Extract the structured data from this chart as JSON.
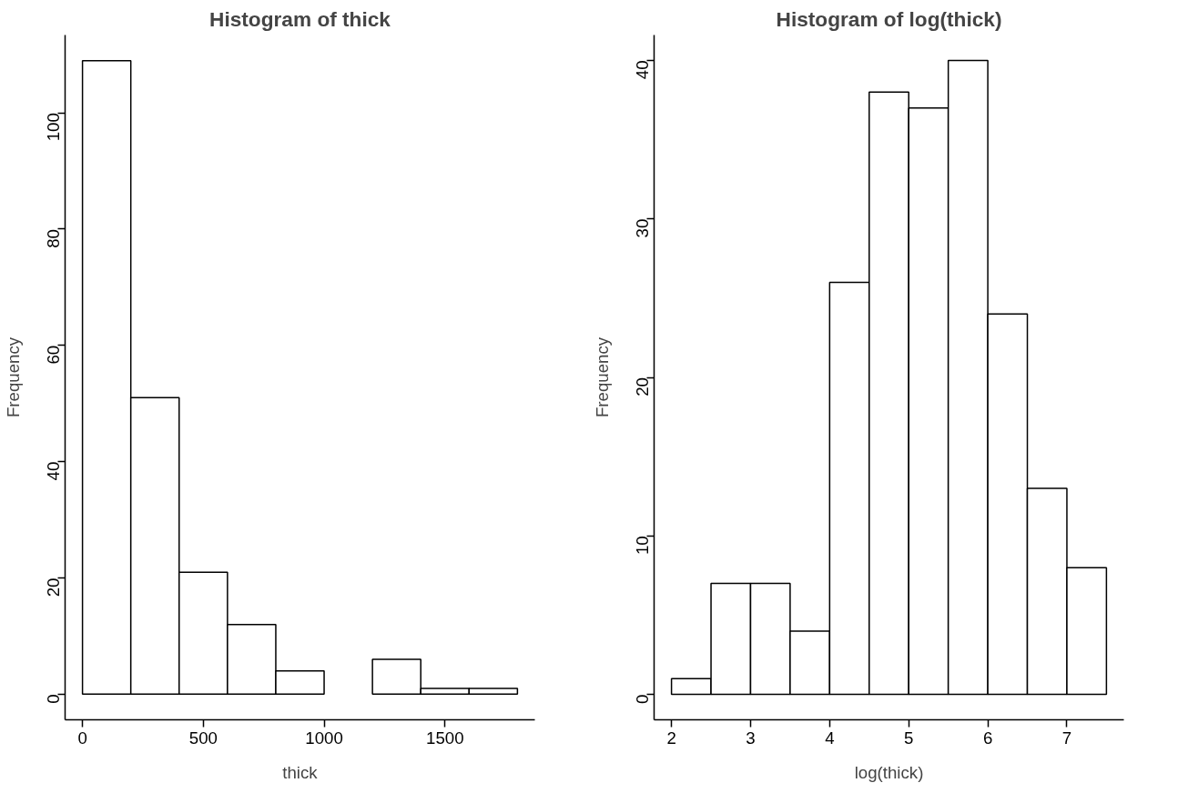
{
  "chart_data": [
    {
      "type": "histogram",
      "title": "Histogram of thick",
      "xlabel": "thick",
      "ylabel": "Frequency",
      "color": "#ffffff",
      "bins": [
        0,
        200,
        400,
        600,
        800,
        1000,
        1200,
        1400,
        1600,
        1800
      ],
      "values": [
        109,
        51,
        21,
        12,
        4,
        0,
        6,
        1,
        1
      ],
      "xlim": [
        -72,
        1872
      ],
      "ylim": [
        -4.4,
        113.4
      ],
      "xticks": [
        0,
        500,
        1000,
        1500
      ],
      "yticks": [
        0,
        20,
        40,
        60,
        80,
        100
      ]
    },
    {
      "type": "histogram",
      "title": "Histogram of log(thick)",
      "xlabel": "log(thick)",
      "ylabel": "Frequency",
      "color": "#ffffff",
      "bins": [
        2,
        2.5,
        3,
        3.5,
        4,
        4.5,
        5,
        5.5,
        6,
        6.5,
        7,
        7.5
      ],
      "values": [
        1,
        7,
        7,
        4,
        26,
        38,
        37,
        40,
        24,
        13,
        8
      ],
      "xlim": [
        1.78,
        7.72
      ],
      "ylim": [
        -1.6,
        41.6
      ],
      "xticks": [
        2,
        3,
        4,
        5,
        6,
        7
      ],
      "yticks": [
        0,
        10,
        20,
        30,
        40
      ]
    }
  ]
}
